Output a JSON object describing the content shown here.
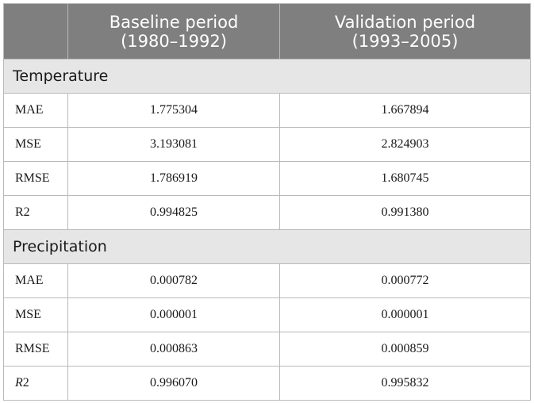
{
  "table": {
    "header": {
      "col1_line1": "Baseline period",
      "col1_line2": "(1980–1992)",
      "col2_line1": "Validation period",
      "col2_line2": "(1993–2005)"
    },
    "sections": [
      {
        "title": "Temperature",
        "rows": [
          {
            "metric": "MAE",
            "baseline": "1.775304",
            "validation": "1.667894"
          },
          {
            "metric": "MSE",
            "baseline": "3.193081",
            "validation": "2.824903"
          },
          {
            "metric": "RMSE",
            "baseline": "1.786919",
            "validation": "1.680745"
          },
          {
            "metric": "R2",
            "baseline": "0.994825",
            "validation": "0.991380"
          }
        ]
      },
      {
        "title": "Precipitation",
        "rows": [
          {
            "metric": "MAE",
            "baseline": "0.000782",
            "validation": "0.000772"
          },
          {
            "metric": "MSE",
            "baseline": "0.000001",
            "validation": "0.000001"
          },
          {
            "metric": "RMSE",
            "baseline": "0.000863",
            "validation": "0.000859"
          },
          {
            "metric_italic_part": "R",
            "metric_rest": "2",
            "baseline": "0.996070",
            "validation": "0.995832"
          }
        ]
      }
    ]
  }
}
